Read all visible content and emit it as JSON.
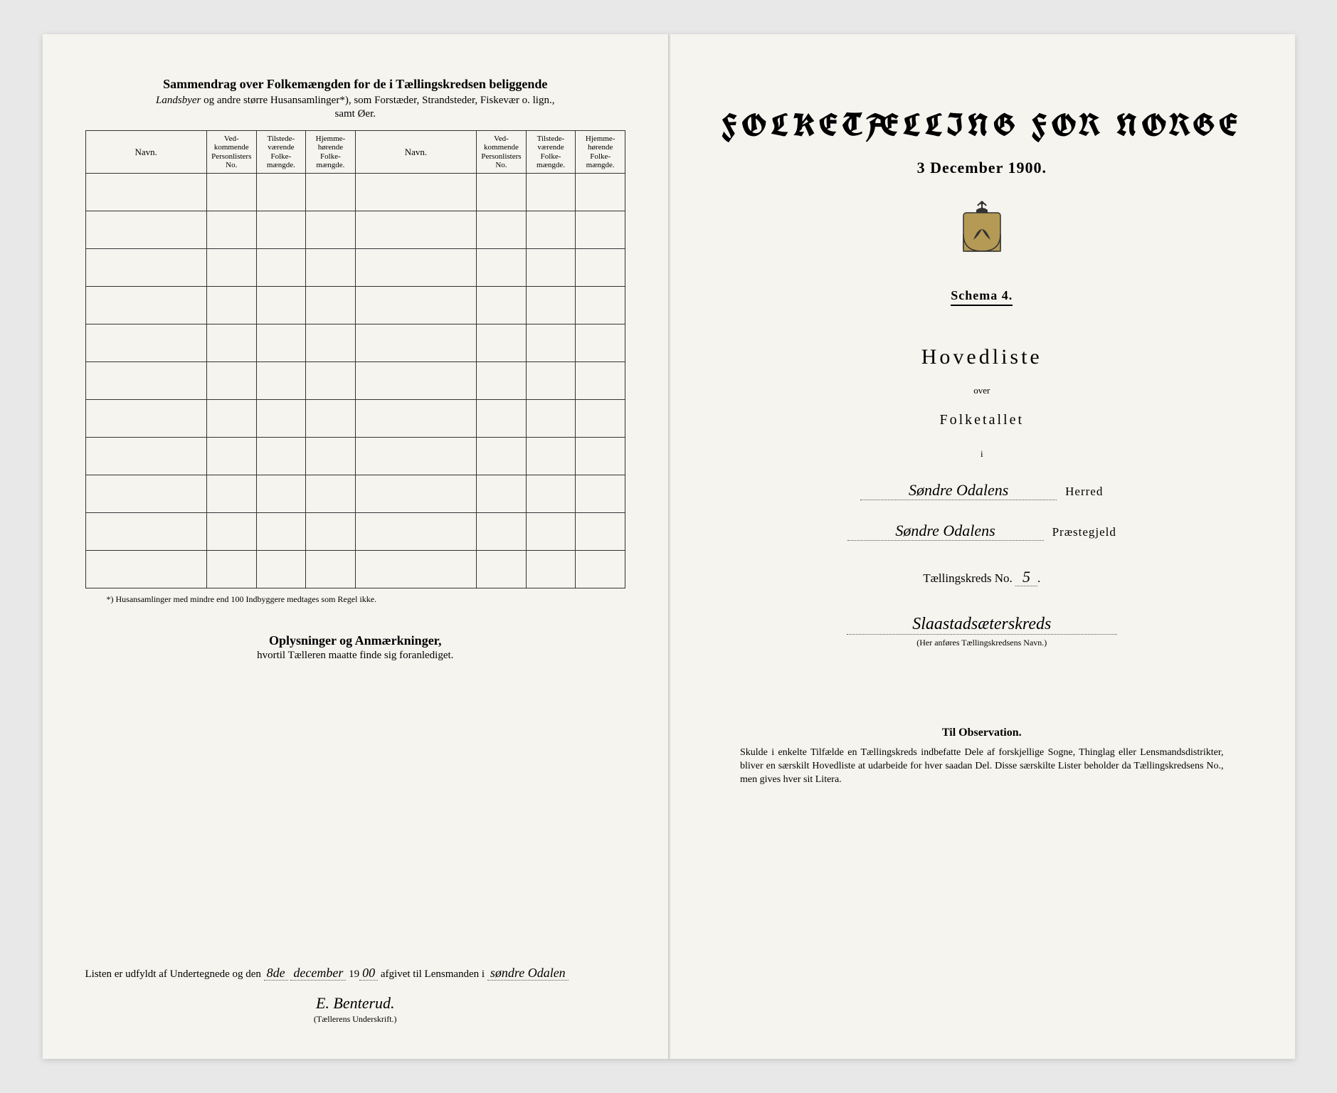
{
  "left": {
    "title": "Sammendrag over Folkemængden for de i Tællingskredsen beliggende",
    "subtitle_italic": "Landsbyer",
    "subtitle_rest": " og andre større Husansamlinger*), som Forstæder, Strandsteder, Fiskevær o. lign.,",
    "subtitle_line2": "samt Øer.",
    "columns": {
      "navn": "Navn.",
      "vedk": "Ved-\nkommende\nPersonlisters\nNo.",
      "tilst": "Tilstede-\nværende\nFolke-\nmængde.",
      "hjemme": "Hjemme-\nhørende\nFolke-\nmængde."
    },
    "row_count": 11,
    "footnote": "*) Husansamlinger med mindre end 100 Indbyggere medtages som Regel ikke.",
    "oplysninger_title": "Oplysninger og Anmærkninger,",
    "oplysninger_sub": "hvortil Tælleren maatte finde sig foranlediget.",
    "signoff_prefix": "Listen er udfyldt af Undertegnede og den ",
    "signoff_day": "8de",
    "signoff_month": "december",
    "signoff_prefix2": " 19",
    "signoff_year": "00",
    "signoff_mid": " afgivet til Lensmanden i ",
    "signoff_place": "søndre Odalen",
    "signer": "E. Benterud.",
    "signer_caption": "(Tællerens Underskrift.)"
  },
  "right": {
    "title": "FOLKETÆLLING FOR NORGE",
    "date": "3 December 1900.",
    "schema": "Schema 4.",
    "hovedliste": "Hovedliste",
    "over": "over",
    "folketallet": "Folketallet",
    "i": "i",
    "herred_value": "Søndre Odalens",
    "herred_label": "Herred",
    "praestegjeld_value": "Søndre Odalens",
    "praestegjeld_label": "Præstegjeld",
    "kreds_label_pre": "Tællingskreds No. ",
    "kreds_no": "5",
    "kreds_label_post": ".",
    "kreds_name": "Slaastadsæterskreds",
    "kreds_caption": "(Her anføres Tællingskredsens Navn.)",
    "obs_title": "Til Observation.",
    "obs_text": "Skulde i enkelte Tilfælde en Tællingskreds indbefatte Dele af forskjellige Sogne, Thinglag eller Lensmandsdistrikter, bliver en særskilt Hovedliste at udarbeide for hver saadan Del. Disse særskilte Lister beholder da Tællingskredsens No., men gives hver sit Litera."
  },
  "colors": {
    "paper": "#f5f4ef",
    "ink": "#222222",
    "bg": "#e8e8e8"
  }
}
